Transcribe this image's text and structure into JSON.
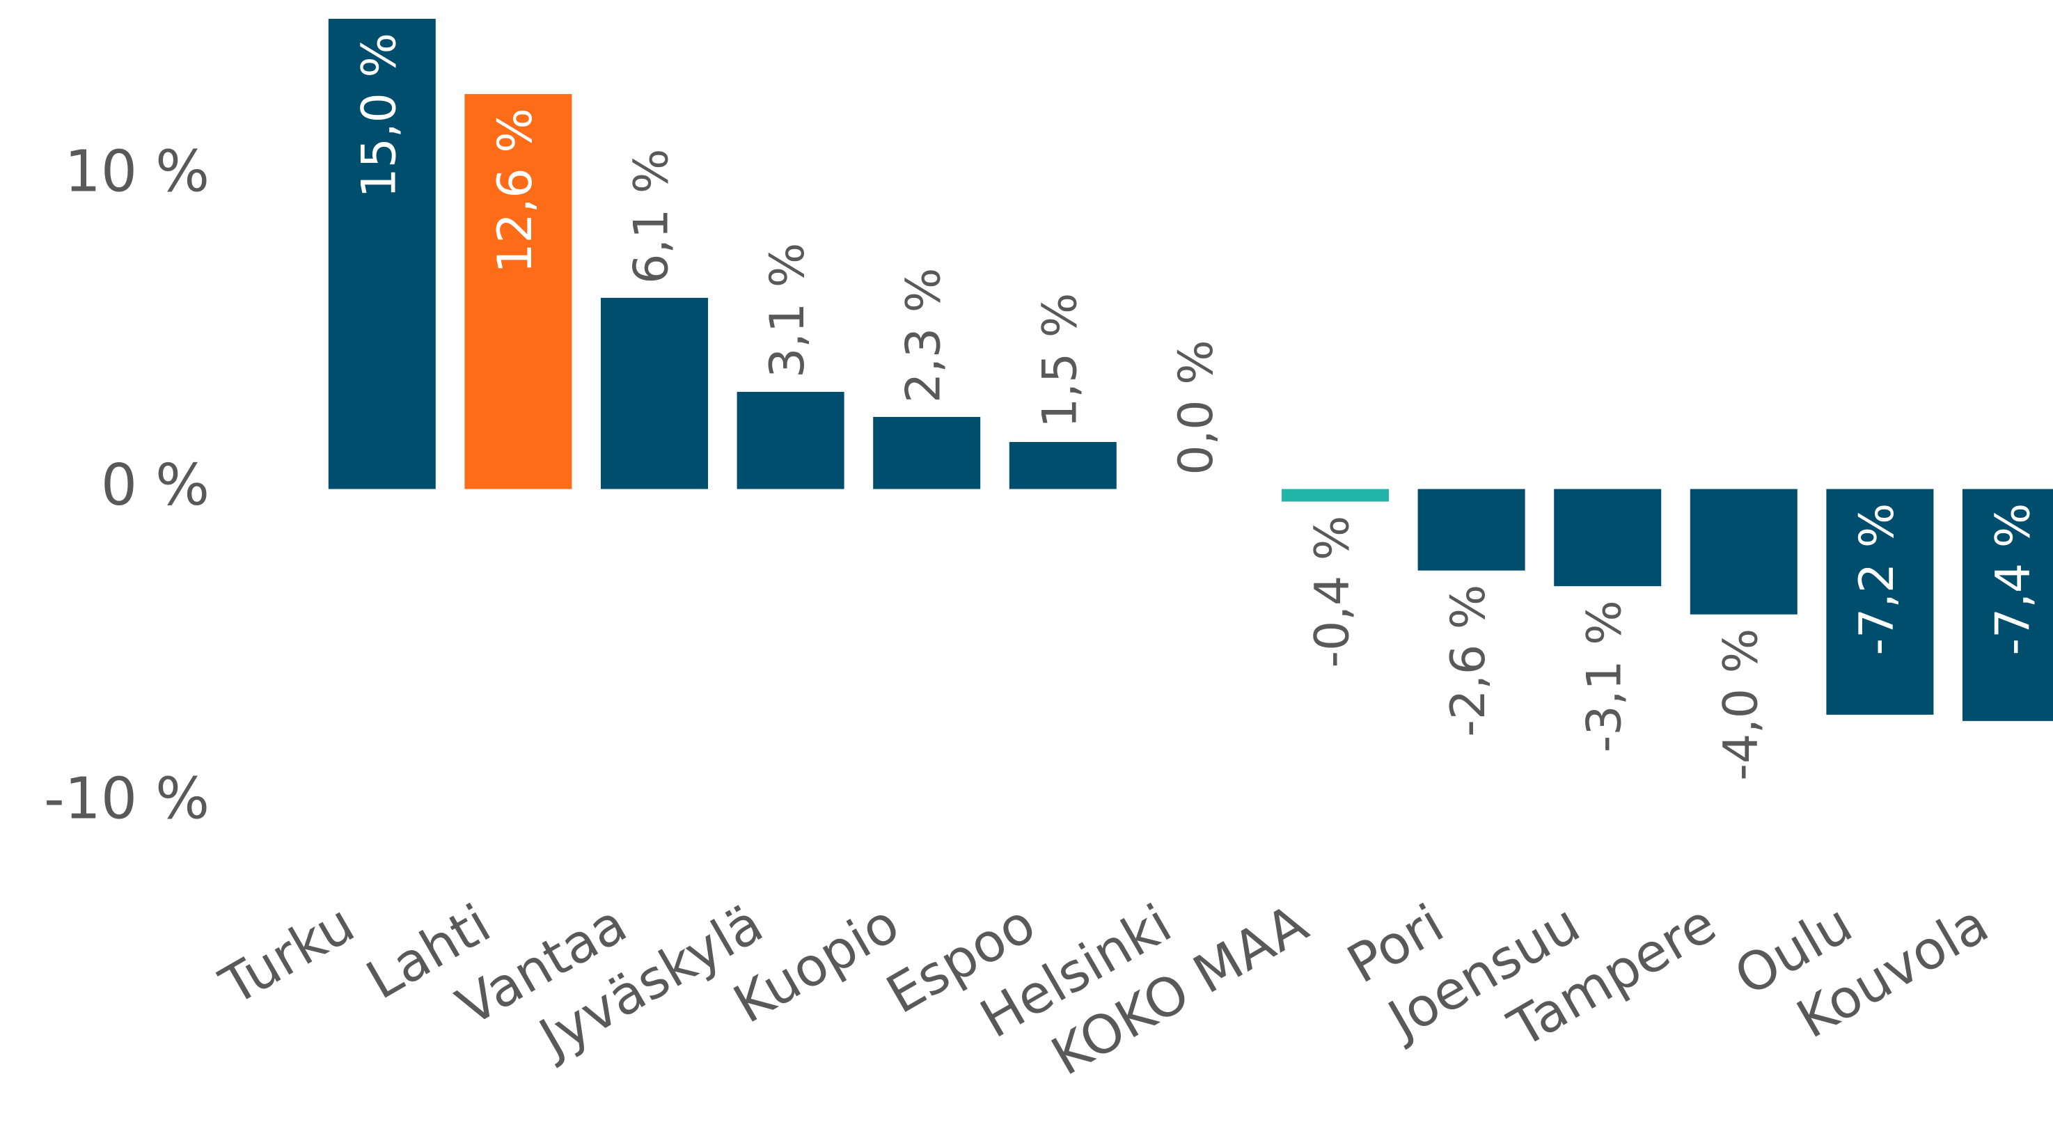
{
  "chart_data": {
    "type": "bar",
    "categories": [
      "Turku",
      "Lahti",
      "Vantaa",
      "Jyväskylä",
      "Kuopio",
      "Espoo",
      "Helsinki",
      "KOKO MAA",
      "Pori",
      "Joensuu",
      "Tampere",
      "Oulu",
      "Kouvola"
    ],
    "values": [
      15.0,
      12.6,
      6.1,
      3.1,
      2.3,
      1.5,
      0.0,
      -0.4,
      -2.6,
      -3.1,
      -4.0,
      -7.2,
      -7.4
    ],
    "value_labels": [
      "15,0 %",
      "12,6 %",
      "6,1 %",
      "3,1 %",
      "2,3 %",
      "1,5 %",
      "0,0 %",
      "-0,4 %",
      "-2,6 %",
      "-3,1 %",
      "-4,0 %",
      "-7,2 %",
      "-7,4 %"
    ],
    "colors": [
      "#004e6e",
      "#ff6c17",
      "#004e6e",
      "#004e6e",
      "#004e6e",
      "#004e6e",
      "#004e6e",
      "#20b5a8",
      "#004e6e",
      "#004e6e",
      "#004e6e",
      "#004e6e",
      "#004e6e"
    ],
    "ylim": [
      -12,
      15.6
    ],
    "yticks": [
      {
        "value": 10,
        "label": "10 %"
      },
      {
        "value": 0,
        "label": "0 %"
      },
      {
        "value": -10,
        "label": "-10 %"
      }
    ],
    "grid": false
  }
}
